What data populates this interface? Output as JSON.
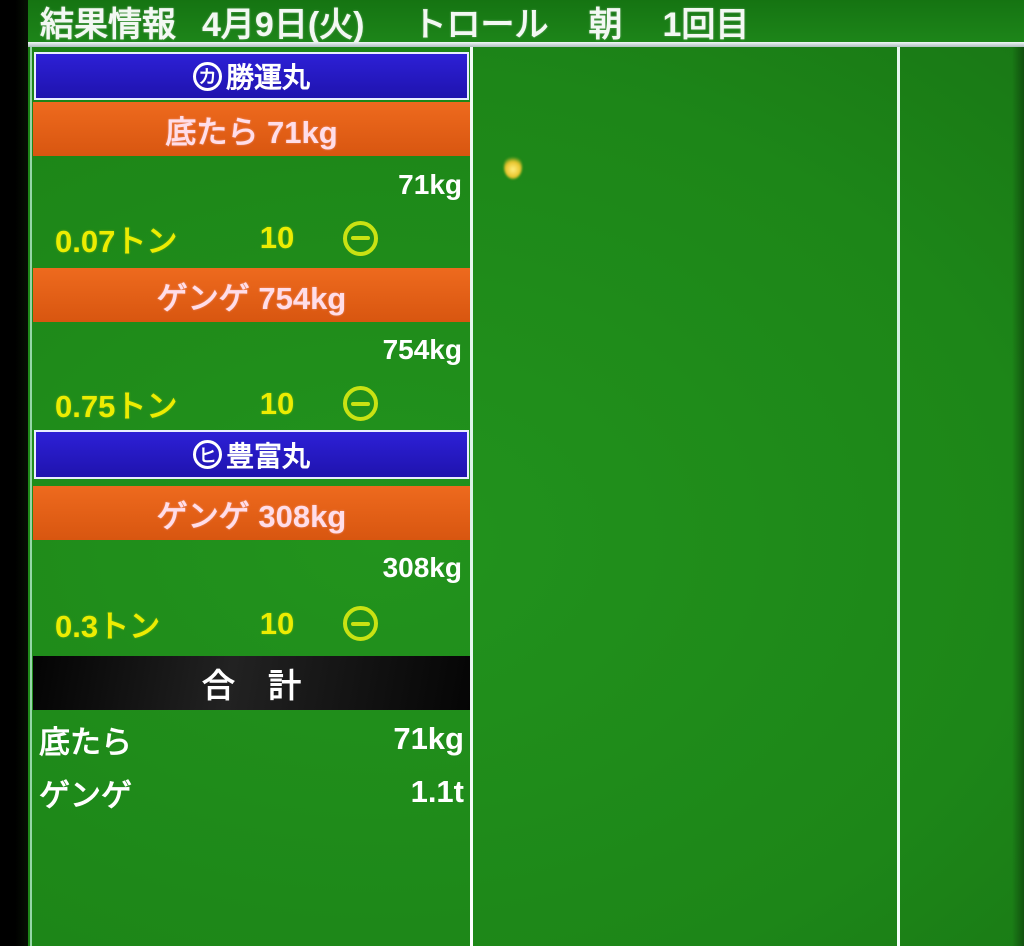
{
  "header": {
    "title": "結果情報",
    "date": "4月9日(火)",
    "fishing_method": "トロール",
    "session": "朝",
    "round": "1回目"
  },
  "boats": [
    {
      "mark": "カ",
      "name": "勝運丸",
      "catches": [
        {
          "label": "底たら 71kg",
          "weight": "71kg",
          "tons": "0.07トン",
          "lots": "10",
          "symbol": "⊖"
        },
        {
          "label": "ゲンゲ 754kg",
          "weight": "754kg",
          "tons": "0.75トン",
          "lots": "10",
          "symbol": "⊖"
        }
      ]
    },
    {
      "mark": "ヒ",
      "name": "豊富丸",
      "catches": [
        {
          "label": "ゲンゲ 308kg",
          "weight": "308kg",
          "tons": "0.3トン",
          "lots": "10",
          "symbol": "⊖"
        }
      ]
    }
  ],
  "totals": {
    "title": "合 計",
    "rows": [
      {
        "species": "底たら",
        "amount": "71kg"
      },
      {
        "species": "ゲンゲ",
        "amount": "1.1t"
      }
    ]
  },
  "colors": {
    "background_green": "#1d8618",
    "bar_blue": "#2417c4",
    "bar_orange": "#e2601a",
    "bar_black": "#0d0d0d",
    "text_yellow": "#ecec02",
    "symbol_yellow_green": "#c9e213",
    "divider_white": "#d9f2e6"
  }
}
